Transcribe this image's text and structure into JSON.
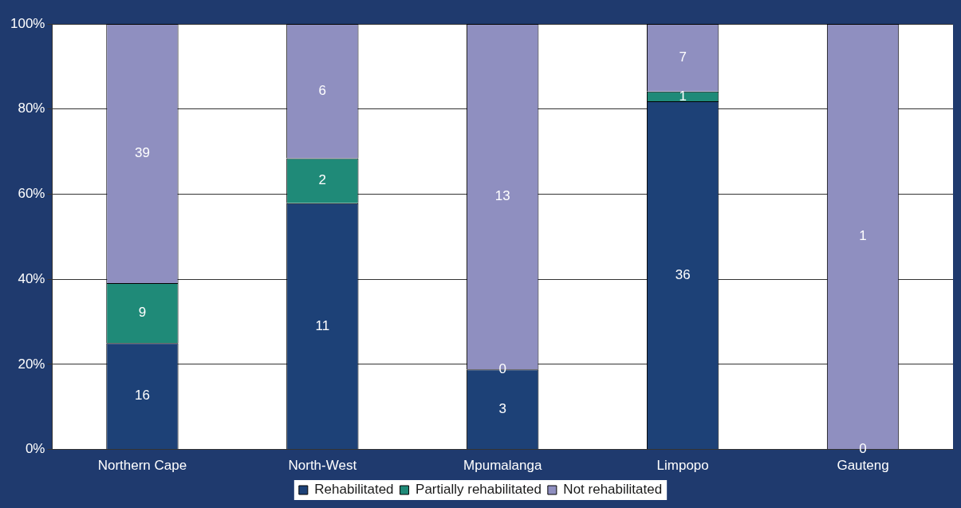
{
  "chart_data": {
    "type": "bar",
    "stacked": true,
    "categories": [
      "Northern Cape",
      "North-West",
      "Mpumalanga",
      "Limpopo",
      "Gauteng"
    ],
    "series": [
      {
        "name": "Rehabilitated",
        "color": "#1d4177",
        "values": [
          25,
          57.9,
          18.8,
          81.8,
          0
        ]
      },
      {
        "name": "Partially rehabilitated",
        "color": "#1f8a78",
        "values": [
          14.1,
          10.5,
          0,
          2.3,
          null
        ]
      },
      {
        "name": "Not rehabilitated",
        "color": "#8f8fc0",
        "values": [
          60.9,
          31.6,
          81.2,
          15.9,
          100
        ]
      }
    ],
    "annotations": [
      "16",
      "9",
      "39",
      "11",
      "2",
      "6",
      "3",
      "0",
      "13",
      "36",
      "1",
      "7",
      "0",
      "1"
    ],
    "ylim": [
      0,
      100
    ],
    "yticks": [
      {
        "value": 0,
        "label": "0%"
      },
      {
        "value": 20,
        "label": "20%"
      },
      {
        "value": 40,
        "label": "40%"
      },
      {
        "value": 60,
        "label": "60%"
      },
      {
        "value": 80,
        "label": "80%"
      },
      {
        "value": 100,
        "label": "100%"
      }
    ],
    "grid": "y",
    "legend": "bottom"
  }
}
